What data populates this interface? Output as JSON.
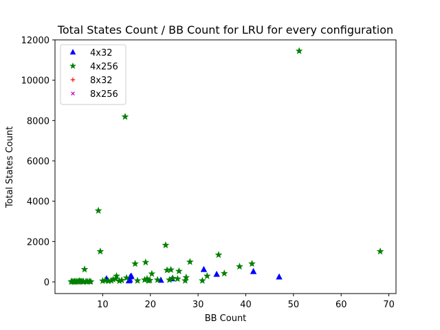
{
  "chart_data": {
    "type": "scatter",
    "title": "Total States Count / BB Count for LRU for every configuration",
    "xlabel": "BB Count",
    "ylabel": "Total States Count",
    "xlim": [
      0,
      71.5
    ],
    "ylim": [
      -580,
      12000
    ],
    "xticks": [
      10,
      20,
      30,
      40,
      50,
      60,
      70
    ],
    "yticks": [
      0,
      2000,
      4000,
      6000,
      8000,
      10000,
      12000
    ],
    "grid": false,
    "legend_position": "upper-left",
    "series": [
      {
        "name": "4x32",
        "marker": "triangle-up",
        "color": "#0000ff",
        "points": [
          [
            10.8,
            150
          ],
          [
            15.5,
            50
          ],
          [
            15.7,
            100
          ],
          [
            15.8,
            250
          ],
          [
            16.0,
            280
          ],
          [
            22.2,
            80
          ],
          [
            24.6,
            150
          ],
          [
            31.2,
            610
          ],
          [
            33.9,
            370
          ],
          [
            41.6,
            510
          ],
          [
            47.0,
            240
          ]
        ]
      },
      {
        "name": "4x256",
        "marker": "star",
        "color": "#008000",
        "points": [
          [
            3.4,
            10
          ],
          [
            3.6,
            20
          ],
          [
            3.9,
            5
          ],
          [
            4.1,
            15
          ],
          [
            4.3,
            10
          ],
          [
            4.6,
            25
          ],
          [
            4.9,
            10
          ],
          [
            5.1,
            40
          ],
          [
            5.3,
            15
          ],
          [
            5.5,
            30
          ],
          [
            5.8,
            20
          ],
          [
            6.0,
            10
          ],
          [
            6.2,
            620
          ],
          [
            6.5,
            20
          ],
          [
            6.8,
            15
          ],
          [
            7.2,
            25
          ],
          [
            7.5,
            10
          ],
          [
            9.1,
            3530
          ],
          [
            9.5,
            1510
          ],
          [
            10.0,
            50
          ],
          [
            10.5,
            70
          ],
          [
            11.2,
            40
          ],
          [
            11.8,
            60
          ],
          [
            12.2,
            120
          ],
          [
            12.7,
            150
          ],
          [
            12.9,
            290
          ],
          [
            13.5,
            50
          ],
          [
            14.0,
            80
          ],
          [
            14.7,
            8190
          ],
          [
            15.0,
            200
          ],
          [
            16.8,
            900
          ],
          [
            17.3,
            60
          ],
          [
            18.8,
            100
          ],
          [
            19.0,
            970
          ],
          [
            19.3,
            150
          ],
          [
            19.6,
            60
          ],
          [
            19.9,
            80
          ],
          [
            20.3,
            400
          ],
          [
            21.5,
            100
          ],
          [
            23.2,
            1820
          ],
          [
            23.5,
            580
          ],
          [
            24.0,
            100
          ],
          [
            24.3,
            600
          ],
          [
            24.7,
            180
          ],
          [
            25.7,
            150
          ],
          [
            26.0,
            530
          ],
          [
            27.3,
            60
          ],
          [
            27.5,
            220
          ],
          [
            28.3,
            990
          ],
          [
            30.9,
            60
          ],
          [
            31.9,
            290
          ],
          [
            34.3,
            1340
          ],
          [
            35.5,
            420
          ],
          [
            38.7,
            760
          ],
          [
            41.3,
            900
          ],
          [
            51.2,
            11450
          ],
          [
            68.2,
            1510
          ]
        ]
      },
      {
        "name": "8x32",
        "marker": "plus",
        "color": "#ff0000",
        "points": []
      },
      {
        "name": "8x256",
        "marker": "x",
        "color": "#bf00bf",
        "points": []
      }
    ]
  }
}
